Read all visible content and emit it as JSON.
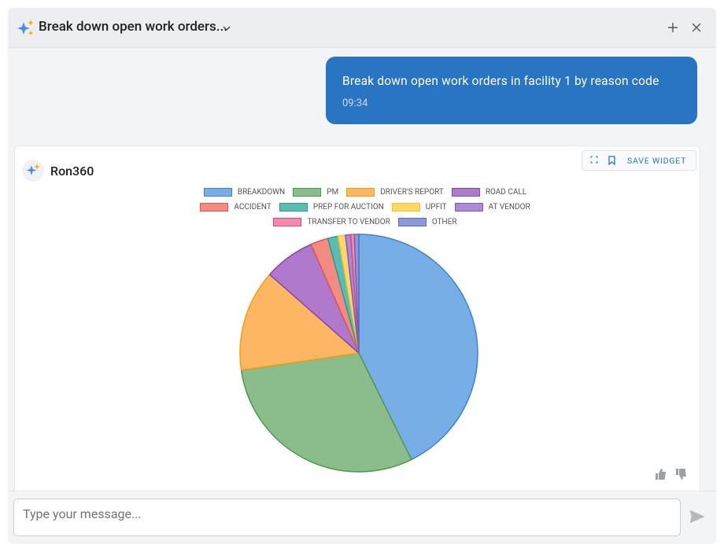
{
  "header": {
    "title": "Break down open work orders..."
  },
  "message": {
    "text": "Break down open work orders in facility 1 by reason code",
    "time": "09:34"
  },
  "bot": {
    "name": "Ron360"
  },
  "widget": {
    "save": "SAVE WIDGET"
  },
  "input": {
    "placeholder": "Type your message..."
  },
  "chart_data": {
    "type": "pie",
    "categories": [
      "BREAKDOWN",
      "PM",
      "DRIVER'S REPORT",
      "ROAD CALL",
      "ACCIDENT",
      "PREP FOR AUCTION",
      "UPFIT",
      "AT VENDOR",
      "TRANSFER TO VENDOR",
      "OTHER"
    ],
    "values": [
      42.7,
      30,
      13.8,
      6.9,
      2.4,
      1.4,
      1.0,
      0.7,
      0.5,
      0.6
    ],
    "colors": [
      "#77aee6",
      "#8abd8a",
      "#fdb663",
      "#b07acc",
      "#f28b82",
      "#5bbcb0",
      "#ffd866",
      "#a98bd6",
      "#f28aae",
      "#8e9ad8"
    ],
    "border_colors": [
      "#3b82d6",
      "#4c9a4c",
      "#f59e0b",
      "#8e44ad",
      "#e05353",
      "#2a9d8f",
      "#f4c430",
      "#7e57c2",
      "#e0457b",
      "#5c6bc0"
    ]
  }
}
